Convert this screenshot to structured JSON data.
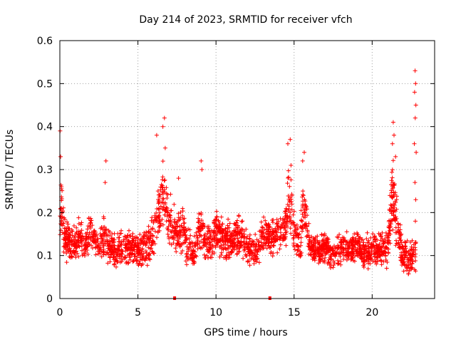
{
  "chart_data": {
    "type": "scatter",
    "title": "Day 214 of 2023, SRMTID for receiver vfch",
    "xlabel": "GPS time / hours",
    "ylabel": "SRMTID / TECUs",
    "xlim": [
      0,
      24
    ],
    "ylim": [
      0,
      0.6
    ],
    "xticks": [
      "0",
      "5",
      "10",
      "15",
      "20"
    ],
    "yticks": [
      "0",
      "0.1",
      "0.2",
      "0.3",
      "0.4",
      "0.5",
      "0.6"
    ],
    "grid": true,
    "marker": "plus",
    "color": "#ff0000",
    "bottom_markers_hours": [
      7.35,
      13.45
    ],
    "envelope_hours": [
      0,
      0.1,
      0.3,
      0.6,
      1.0,
      1.3,
      1.6,
      2.0,
      2.5,
      2.9,
      3.0,
      3.5,
      4.0,
      4.5,
      5.0,
      5.5,
      6.0,
      6.3,
      6.6,
      6.8,
      7.0,
      7.4,
      7.8,
      8.2,
      8.6,
      9.0,
      9.2,
      9.6,
      10.0,
      10.5,
      11.0,
      11.5,
      12.0,
      12.5,
      13.0,
      13.5,
      14.0,
      14.5,
      14.7,
      15.0,
      15.4,
      15.6,
      16.0,
      16.5,
      17.0,
      17.5,
      18.0,
      18.5,
      19.0,
      19.5,
      20.0,
      20.5,
      21.0,
      21.3,
      21.6,
      22.0,
      22.5,
      22.8
    ],
    "envelope_center": [
      0.14,
      0.22,
      0.14,
      0.13,
      0.12,
      0.15,
      0.12,
      0.16,
      0.12,
      0.15,
      0.13,
      0.11,
      0.12,
      0.12,
      0.11,
      0.12,
      0.14,
      0.2,
      0.24,
      0.22,
      0.18,
      0.15,
      0.16,
      0.13,
      0.1,
      0.18,
      0.14,
      0.13,
      0.16,
      0.14,
      0.13,
      0.15,
      0.12,
      0.11,
      0.14,
      0.15,
      0.15,
      0.17,
      0.25,
      0.15,
      0.13,
      0.23,
      0.12,
      0.11,
      0.12,
      0.1,
      0.12,
      0.11,
      0.13,
      0.1,
      0.12,
      0.11,
      0.12,
      0.25,
      0.16,
      0.1,
      0.09,
      0.11
    ],
    "envelope_spread": [
      0.05,
      0.1,
      0.06,
      0.06,
      0.05,
      0.06,
      0.05,
      0.06,
      0.05,
      0.07,
      0.06,
      0.05,
      0.05,
      0.05,
      0.05,
      0.06,
      0.07,
      0.09,
      0.1,
      0.09,
      0.08,
      0.07,
      0.07,
      0.06,
      0.05,
      0.08,
      0.06,
      0.06,
      0.06,
      0.06,
      0.06,
      0.06,
      0.05,
      0.05,
      0.06,
      0.06,
      0.06,
      0.07,
      0.1,
      0.07,
      0.06,
      0.09,
      0.05,
      0.05,
      0.05,
      0.05,
      0.05,
      0.05,
      0.05,
      0.05,
      0.05,
      0.05,
      0.06,
      0.12,
      0.09,
      0.05,
      0.05,
      0.06
    ],
    "peaks": [
      {
        "x": 0.02,
        "y": 0.39
      },
      {
        "x": 0.05,
        "y": 0.33
      },
      {
        "x": 0.1,
        "y": 0.26
      },
      {
        "x": 2.95,
        "y": 0.32
      },
      {
        "x": 2.9,
        "y": 0.27
      },
      {
        "x": 6.2,
        "y": 0.38
      },
      {
        "x": 6.7,
        "y": 0.42
      },
      {
        "x": 6.6,
        "y": 0.4
      },
      {
        "x": 6.75,
        "y": 0.35
      },
      {
        "x": 7.6,
        "y": 0.28
      },
      {
        "x": 9.05,
        "y": 0.32
      },
      {
        "x": 9.1,
        "y": 0.3
      },
      {
        "x": 14.75,
        "y": 0.37
      },
      {
        "x": 14.6,
        "y": 0.36
      },
      {
        "x": 14.8,
        "y": 0.31
      },
      {
        "x": 15.65,
        "y": 0.34
      },
      {
        "x": 15.55,
        "y": 0.32
      },
      {
        "x": 21.35,
        "y": 0.41
      },
      {
        "x": 21.4,
        "y": 0.38
      },
      {
        "x": 21.3,
        "y": 0.36
      },
      {
        "x": 21.5,
        "y": 0.33
      },
      {
        "x": 22.75,
        "y": 0.53
      },
      {
        "x": 22.78,
        "y": 0.5
      },
      {
        "x": 22.72,
        "y": 0.48
      },
      {
        "x": 22.8,
        "y": 0.45
      },
      {
        "x": 22.76,
        "y": 0.42
      },
      {
        "x": 22.7,
        "y": 0.36
      },
      {
        "x": 22.82,
        "y": 0.34
      },
      {
        "x": 22.74,
        "y": 0.27
      },
      {
        "x": 22.79,
        "y": 0.23
      },
      {
        "x": 22.77,
        "y": 0.18
      }
    ],
    "point_count": 2600
  }
}
